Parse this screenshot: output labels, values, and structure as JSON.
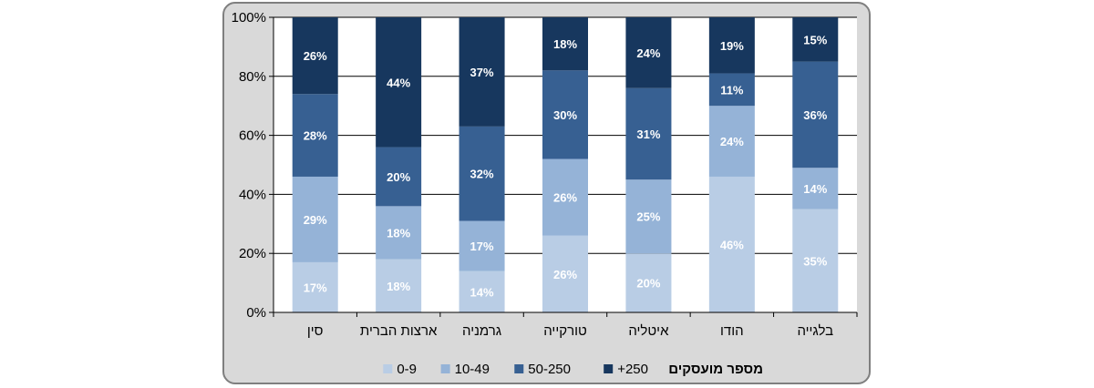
{
  "chart_data": {
    "type": "bar",
    "stacked": true,
    "categories": [
      "סין",
      "ארצות הברית",
      "גרמניה",
      "טורקייה",
      "איטליה",
      "הודו",
      "בלגייה"
    ],
    "series": [
      {
        "name": "0-9",
        "color": "#b9cde5",
        "values": [
          17,
          18,
          14,
          26,
          20,
          46,
          35
        ],
        "labels": [
          "17%",
          "18%",
          "14%",
          "26%",
          "20%",
          "46%",
          "35%"
        ]
      },
      {
        "name": "10-49",
        "color": "#95b3d7",
        "values": [
          29,
          18,
          17,
          26,
          25,
          24,
          14
        ],
        "labels": [
          "29%",
          "18%",
          "17%",
          "26%",
          "25%",
          "24%",
          "14%"
        ]
      },
      {
        "name": "50-250",
        "color": "#376092",
        "values": [
          28,
          20,
          32,
          30,
          31,
          11,
          36
        ],
        "labels": [
          "28%",
          "20%",
          "32%",
          "30%",
          "31%",
          "11%",
          "36%"
        ]
      },
      {
        "name": "+250",
        "color": "#17375e",
        "values": [
          26,
          44,
          37,
          18,
          24,
          19,
          15
        ],
        "labels": [
          "26%",
          "44%",
          "37%",
          "18%",
          "24%",
          "19%",
          "15%"
        ]
      }
    ],
    "ylim": [
      0,
      100
    ],
    "yticks": [
      "0%",
      "20%",
      "40%",
      "60%",
      "80%",
      "100%"
    ],
    "grid": true,
    "legend_title": "מספר מועסקים",
    "legend_position": "bottom"
  }
}
